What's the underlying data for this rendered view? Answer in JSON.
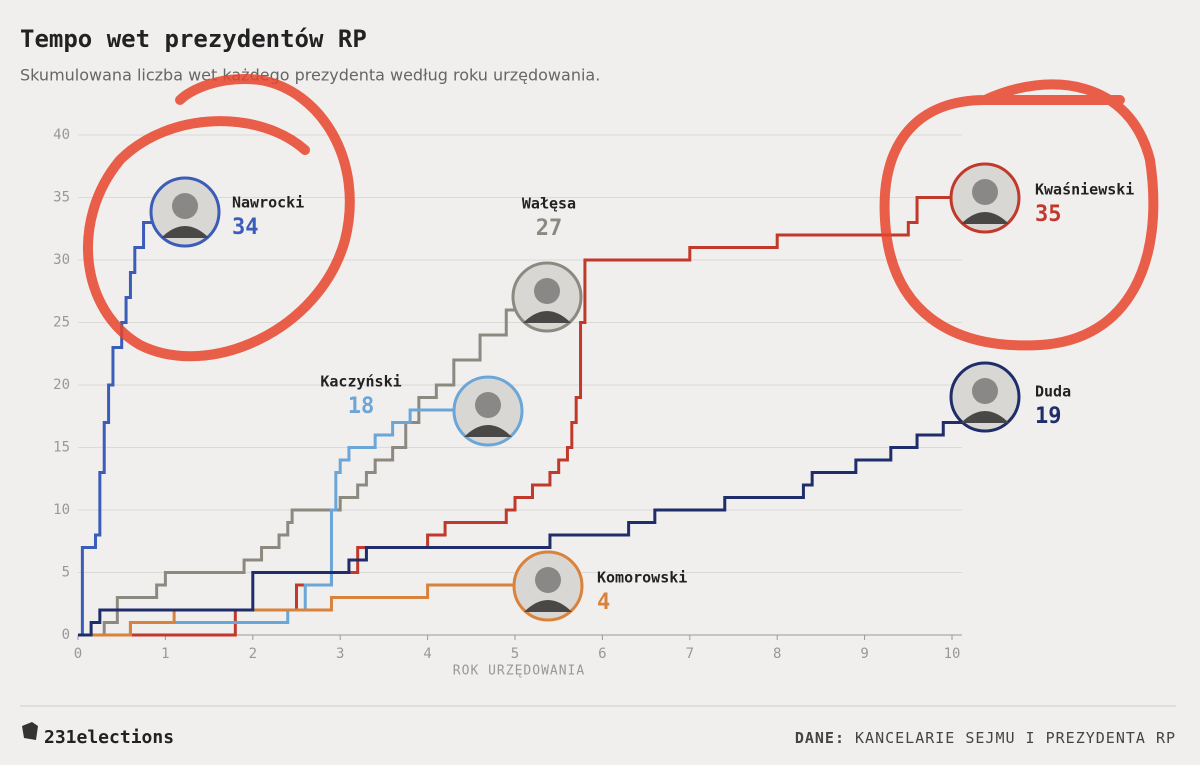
{
  "chart_data": {
    "type": "step",
    "title": "Tempo wet prezydentów RP",
    "subtitle": "Skumulowana liczba wet każdego prezydenta według roku urzędowania.",
    "x_label": "ROK URZĘDOWANIA",
    "brand": "231elections",
    "source_label": "DANE:",
    "source": "KANCELARIE SEJMU I PREZYDENTA RP",
    "xlim": [
      0,
      10
    ],
    "ylim": [
      0,
      40
    ],
    "xticks": [
      0,
      1,
      2,
      3,
      4,
      5,
      6,
      7,
      8,
      9,
      10
    ],
    "yticks": [
      0,
      5,
      10,
      15,
      20,
      25,
      30,
      35,
      40
    ],
    "grid": true,
    "series": [
      {
        "name": "Nawrocki",
        "color": "#3b5cb8",
        "x": [
          0,
          0.05,
          0.2,
          0.25,
          0.3,
          0.35,
          0.4,
          0.5,
          0.55,
          0.6,
          0.65,
          0.75,
          0.85
        ],
        "values": [
          0,
          7,
          8,
          13,
          17,
          20,
          23,
          25,
          27,
          29,
          31,
          33,
          34
        ]
      },
      {
        "name": "Kwaśniewski",
        "color": "#c0392b",
        "x": [
          0,
          1.8,
          2.5,
          2.9,
          3.2,
          4.0,
          4.2,
          4.9,
          5.0,
          5.2,
          5.4,
          5.5,
          5.6,
          5.65,
          5.7,
          5.75,
          5.8,
          7.0,
          8.0,
          9.5,
          9.6,
          10.0
        ],
        "values": [
          0,
          2,
          4,
          5,
          7,
          8,
          9,
          10,
          11,
          12,
          13,
          14,
          15,
          17,
          19,
          25,
          30,
          31,
          32,
          33,
          35,
          35
        ]
      },
      {
        "name": "Wałęsa",
        "color": "#8c8a80",
        "x": [
          0,
          0.3,
          0.45,
          0.9,
          1.0,
          1.9,
          2.1,
          2.3,
          2.4,
          2.45,
          3.0,
          3.2,
          3.3,
          3.4,
          3.6,
          3.75,
          3.9,
          4.1,
          4.3,
          4.6,
          4.9,
          5.1
        ],
        "values": [
          0,
          1,
          3,
          4,
          5,
          6,
          7,
          8,
          9,
          10,
          11,
          12,
          13,
          14,
          15,
          17,
          19,
          20,
          22,
          24,
          26,
          27
        ]
      },
      {
        "name": "Kaczyński",
        "color": "#6aa6d8",
        "x": [
          0,
          0.6,
          2.4,
          2.6,
          2.9,
          2.95,
          3.0,
          3.1,
          3.4,
          3.6,
          3.8,
          4.5
        ],
        "values": [
          0,
          1,
          2,
          4,
          10,
          13,
          14,
          15,
          16,
          17,
          18,
          18
        ]
      },
      {
        "name": "Komorowski",
        "color": "#d9823b",
        "x": [
          0,
          0.6,
          1.1,
          2.9,
          4.0,
          5.3
        ],
        "values": [
          0,
          1,
          2,
          3,
          4,
          4
        ]
      },
      {
        "name": "Duda",
        "color": "#1f2d6b",
        "x": [
          0,
          0.15,
          0.25,
          2.0,
          3.1,
          3.3,
          5.4,
          6.3,
          6.6,
          7.4,
          8.3,
          8.4,
          8.9,
          9.3,
          9.6,
          9.9,
          10.2
        ],
        "values": [
          0,
          1,
          2,
          5,
          6,
          7,
          8,
          9,
          10,
          11,
          12,
          13,
          14,
          15,
          16,
          17,
          19
        ]
      }
    ]
  }
}
